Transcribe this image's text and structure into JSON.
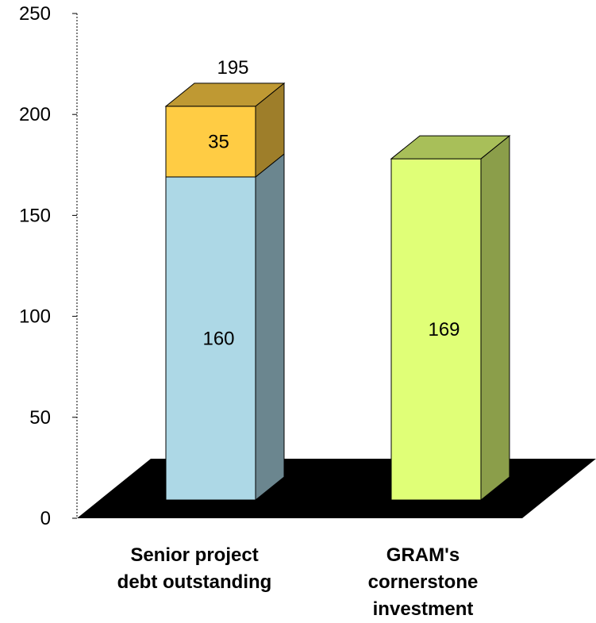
{
  "chart_data": {
    "type": "bar",
    "stacked": true,
    "three_d": true,
    "title": "",
    "xlabel": "",
    "ylabel": "",
    "ylim": [
      0,
      250
    ],
    "y_ticks": [
      "0",
      "50",
      "100",
      "150",
      "200",
      "250"
    ],
    "grid": false,
    "legend": "none",
    "categories": [
      [
        "Senior project",
        "debt outstanding"
      ],
      [
        "GRAM's",
        "cornerstone",
        "investment"
      ]
    ],
    "bars": [
      {
        "segments": [
          {
            "value": 160,
            "label": "160",
            "color": "#ADD8E6"
          },
          {
            "value": 35,
            "label": "35",
            "color": "#FFCC44"
          }
        ],
        "total_label": "195"
      },
      {
        "segments": [
          {
            "value": 169,
            "label": "169",
            "color": "#E0FF77"
          }
        ]
      }
    ],
    "floor_color": "#000000"
  }
}
